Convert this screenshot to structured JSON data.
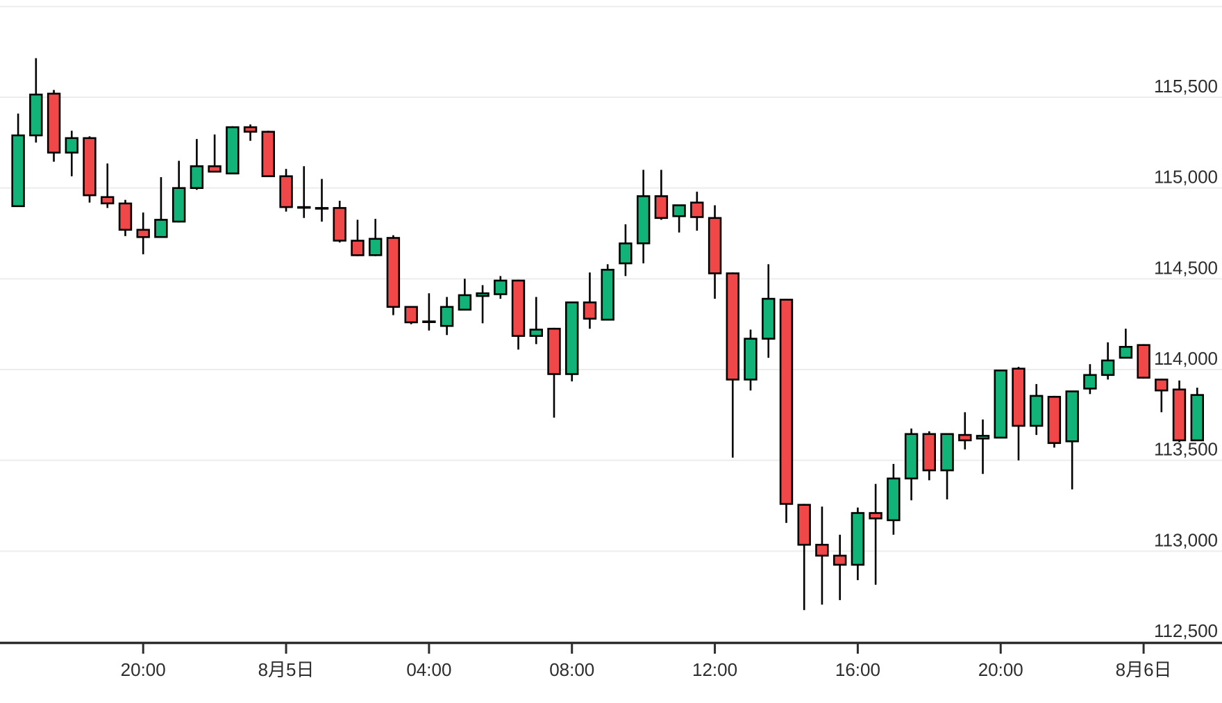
{
  "chart_data": {
    "type": "candlestick",
    "title": "",
    "legend": "none",
    "grid": "horizontal-only",
    "colors": {
      "up": "#11b378",
      "down": "#f04848",
      "candle_stroke": "#000000",
      "grid_line": "#ececec",
      "axis_line": "#2d2d2d",
      "tick_mark": "#2d2d2d",
      "label_text": "#2d2d2d",
      "background": "#ffffff"
    },
    "y_axis": {
      "side": "right",
      "min": 112500,
      "max": 116000,
      "unlabeled_gridlines": [
        116000
      ],
      "ticks": [
        {
          "value": 115500,
          "label": "115,500"
        },
        {
          "value": 115000,
          "label": "115,000"
        },
        {
          "value": 114500,
          "label": "114,500"
        },
        {
          "value": 114000,
          "label": "114,000"
        },
        {
          "value": 113500,
          "label": "113,500"
        },
        {
          "value": 113000,
          "label": "113,000"
        },
        {
          "value": 112500,
          "label": "112,500"
        }
      ]
    },
    "x_axis": {
      "interval_per_candle_minutes": 30,
      "ticks": [
        {
          "candle_index": 7,
          "label": "20:00"
        },
        {
          "candle_index": 15,
          "label": "8月5日"
        },
        {
          "candle_index": 23,
          "label": "04:00"
        },
        {
          "candle_index": 31,
          "label": "08:00"
        },
        {
          "candle_index": 39,
          "label": "12:00"
        },
        {
          "candle_index": 47,
          "label": "16:00"
        },
        {
          "candle_index": 55,
          "label": "20:00"
        },
        {
          "candle_index": 63,
          "label": "8月6日"
        }
      ]
    },
    "candles_format": [
      "open",
      "high",
      "low",
      "close"
    ],
    "candles": [
      [
        114900,
        115410,
        114900,
        115290
      ],
      [
        115290,
        115715,
        115250,
        115515
      ],
      [
        115520,
        115540,
        115145,
        115195
      ],
      [
        115195,
        115315,
        115065,
        115275
      ],
      [
        115275,
        115285,
        114920,
        114960
      ],
      [
        114950,
        115135,
        114890,
        114915
      ],
      [
        114915,
        114935,
        114735,
        114770
      ],
      [
        114770,
        114865,
        114635,
        114730
      ],
      [
        114730,
        115060,
        114725,
        114825
      ],
      [
        114815,
        115150,
        114810,
        115000
      ],
      [
        115000,
        115270,
        114990,
        115120
      ],
      [
        115120,
        115295,
        115090,
        115090
      ],
      [
        115080,
        115340,
        115080,
        115335
      ],
      [
        115335,
        115350,
        115260,
        115310
      ],
      [
        115310,
        115315,
        115065,
        115065
      ],
      [
        115065,
        115105,
        114870,
        114895
      ],
      [
        114895,
        115120,
        114835,
        114895
      ],
      [
        114890,
        115050,
        114815,
        114890
      ],
      [
        114890,
        114930,
        114700,
        114710
      ],
      [
        114710,
        114825,
        114625,
        114630
      ],
      [
        114630,
        114830,
        114625,
        114720
      ],
      [
        114725,
        114740,
        114300,
        114345
      ],
      [
        114345,
        114350,
        114250,
        114260
      ],
      [
        114265,
        114420,
        114215,
        114265
      ],
      [
        114240,
        114400,
        114190,
        114345
      ],
      [
        114330,
        114500,
        114330,
        114410
      ],
      [
        114405,
        114465,
        114255,
        114420
      ],
      [
        114415,
        114515,
        114390,
        114490
      ],
      [
        114490,
        114495,
        114110,
        114185
      ],
      [
        114185,
        114400,
        114140,
        114220
      ],
      [
        114225,
        114230,
        113735,
        113975
      ],
      [
        113975,
        114370,
        113935,
        114370
      ],
      [
        114370,
        114535,
        114225,
        114280
      ],
      [
        114275,
        114580,
        114275,
        114550
      ],
      [
        114585,
        114800,
        114515,
        114695
      ],
      [
        114695,
        115100,
        114585,
        114955
      ],
      [
        114955,
        115100,
        114825,
        114835
      ],
      [
        114845,
        114905,
        114755,
        114905
      ],
      [
        114920,
        114980,
        114765,
        114840
      ],
      [
        114835,
        114905,
        114390,
        114530
      ],
      [
        114530,
        114535,
        113515,
        113945
      ],
      [
        113945,
        114220,
        113885,
        114170
      ],
      [
        114170,
        114580,
        114065,
        114390
      ],
      [
        114385,
        114390,
        113155,
        113260
      ],
      [
        113255,
        113260,
        112675,
        113035
      ],
      [
        113035,
        113245,
        112705,
        112975
      ],
      [
        112975,
        113090,
        112730,
        112925
      ],
      [
        112925,
        113240,
        112840,
        113210
      ],
      [
        113210,
        113370,
        112815,
        113180
      ],
      [
        113170,
        113480,
        113090,
        113400
      ],
      [
        113400,
        113675,
        113280,
        113645
      ],
      [
        113645,
        113660,
        113390,
        113445
      ],
      [
        113445,
        113650,
        113285,
        113645
      ],
      [
        113640,
        113765,
        113560,
        113610
      ],
      [
        113620,
        113725,
        113425,
        113635
      ],
      [
        113625,
        113995,
        113625,
        113995
      ],
      [
        114005,
        114015,
        113500,
        113690
      ],
      [
        113690,
        113920,
        113640,
        113855
      ],
      [
        113850,
        113855,
        113570,
        113595
      ],
      [
        113605,
        113880,
        113340,
        113880
      ],
      [
        113895,
        114030,
        113865,
        113970
      ],
      [
        113970,
        114150,
        113945,
        114050
      ],
      [
        114065,
        114225,
        114065,
        114125
      ],
      [
        114135,
        114140,
        113950,
        113955
      ],
      [
        113945,
        113950,
        113765,
        113885
      ],
      [
        113890,
        113940,
        113600,
        113610
      ],
      [
        113610,
        113900,
        113610,
        113860
      ]
    ]
  }
}
